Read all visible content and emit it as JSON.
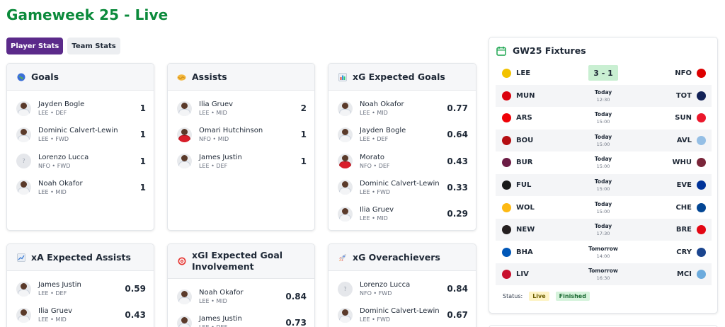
{
  "page": {
    "title": "Gameweek 25 - Live"
  },
  "tabs": [
    {
      "label": "Player Stats",
      "active": true
    },
    {
      "label": "Team Stats",
      "active": false
    }
  ],
  "cards": [
    {
      "title": "Goals",
      "icon": "globe-icon",
      "rows": [
        {
          "name": "Jayden Bogle",
          "team": "LEE",
          "pos": "DEF",
          "value": "1"
        },
        {
          "name": "Dominic Calvert-Lewin",
          "team": "LEE",
          "pos": "FWD",
          "value": "1"
        },
        {
          "name": "Lorenzo Lucca",
          "team": "NFO",
          "pos": "FWD",
          "value": "1",
          "no_photo": true
        },
        {
          "name": "Noah Okafor",
          "team": "LEE",
          "pos": "MID",
          "value": "1"
        }
      ]
    },
    {
      "title": "Assists",
      "icon": "handshake-icon",
      "rows": [
        {
          "name": "Ilia Gruev",
          "team": "LEE",
          "pos": "MID",
          "value": "2"
        },
        {
          "name": "Omari Hutchinson",
          "team": "NFO",
          "pos": "MID",
          "value": "1",
          "red_kit": true
        },
        {
          "name": "James Justin",
          "team": "LEE",
          "pos": "DEF",
          "value": "1"
        }
      ]
    },
    {
      "title": "xG Expected Goals",
      "icon": "bar-chart-icon",
      "rows": [
        {
          "name": "Noah Okafor",
          "team": "LEE",
          "pos": "MID",
          "value": "0.77"
        },
        {
          "name": "Jayden Bogle",
          "team": "LEE",
          "pos": "DEF",
          "value": "0.64"
        },
        {
          "name": "Morato",
          "team": "NFO",
          "pos": "DEF",
          "value": "0.43",
          "red_kit": true
        },
        {
          "name": "Dominic Calvert-Lewin",
          "team": "LEE",
          "pos": "FWD",
          "value": "0.33"
        },
        {
          "name": "Ilia Gruev",
          "team": "LEE",
          "pos": "MID",
          "value": "0.29"
        }
      ]
    },
    {
      "title": "xA Expected Assists",
      "icon": "trend-chart-icon",
      "rows": [
        {
          "name": "James Justin",
          "team": "LEE",
          "pos": "DEF",
          "value": "0.59"
        },
        {
          "name": "Ilia Gruev",
          "team": "LEE",
          "pos": "MID",
          "value": "0.43"
        }
      ]
    },
    {
      "title": "xGI Expected Goal Involvement",
      "icon": "target-icon",
      "rows": [
        {
          "name": "Noah Okafor",
          "team": "LEE",
          "pos": "MID",
          "value": "0.84"
        },
        {
          "name": "James Justin",
          "team": "LEE",
          "pos": "DEF",
          "value": "0.73"
        }
      ]
    },
    {
      "title": "xG Overachievers",
      "icon": "rocket-icon",
      "rows": [
        {
          "name": "Lorenzo Lucca",
          "team": "NFO",
          "pos": "FWD",
          "value": "0.84",
          "no_photo": true
        },
        {
          "name": "Dominic Calvert-Lewin",
          "team": "LEE",
          "pos": "FWD",
          "value": "0.67"
        }
      ]
    }
  ],
  "fixtures": {
    "title": "GW25 Fixtures",
    "matches": [
      {
        "home": "LEE",
        "away": "NFO",
        "score": "3 - 1",
        "home_color": "#f2c200",
        "away_color": "#dd0000"
      },
      {
        "home": "MUN",
        "away": "TOT",
        "day": "Today",
        "time": "12:30",
        "home_color": "#da020e",
        "away_color": "#132257"
      },
      {
        "home": "ARS",
        "away": "SUN",
        "day": "Today",
        "time": "15:00",
        "home_color": "#ef0107",
        "away_color": "#eb172b"
      },
      {
        "home": "BOU",
        "away": "AVL",
        "day": "Today",
        "time": "15:00",
        "home_color": "#b50e12",
        "away_color": "#95bfe5"
      },
      {
        "home": "BUR",
        "away": "WHU",
        "day": "Today",
        "time": "15:00",
        "home_color": "#6c1d45",
        "away_color": "#7a263a"
      },
      {
        "home": "FUL",
        "away": "EVE",
        "day": "Today",
        "time": "15:00",
        "home_color": "#1a1a1a",
        "away_color": "#003399"
      },
      {
        "home": "WOL",
        "away": "CHE",
        "day": "Today",
        "time": "15:00",
        "home_color": "#fdb913",
        "away_color": "#034694"
      },
      {
        "home": "NEW",
        "away": "BRE",
        "day": "Today",
        "time": "17:30",
        "home_color": "#241f20",
        "away_color": "#e30613"
      },
      {
        "home": "BHA",
        "away": "CRY",
        "day": "Tomorrow",
        "time": "14:00",
        "home_color": "#0057b8",
        "away_color": "#1b458f"
      },
      {
        "home": "LIV",
        "away": "MCI",
        "day": "Tomorrow",
        "time": "16:30",
        "home_color": "#c8102e",
        "away_color": "#6cabdd"
      }
    ],
    "status_label": "Status:",
    "legend_live": "Live",
    "legend_finished": "Finished"
  }
}
